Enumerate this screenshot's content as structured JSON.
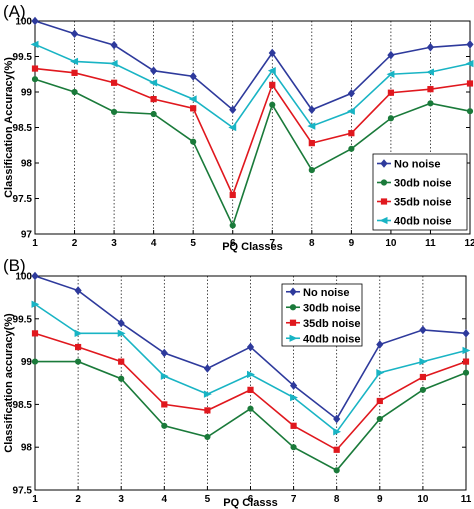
{
  "chart_data": [
    {
      "type": "line",
      "panel_label": "(A)",
      "xlabel": "PQ Classes",
      "ylabel": "Classification Accuracy(%)",
      "x": [
        1,
        2,
        3,
        4,
        5,
        6,
        7,
        8,
        9,
        10,
        11,
        12
      ],
      "x_tick_labels": [
        "1",
        "2",
        "3",
        "4",
        "5",
        "6",
        "7",
        "8",
        "9",
        "10",
        "11",
        "12"
      ],
      "xlim": [
        1,
        12
      ],
      "ylim": [
        97,
        100
      ],
      "y_ticks": [
        97,
        97.5,
        98,
        98.5,
        99,
        99.5,
        100
      ],
      "y_tick_labels": [
        "97",
        "97.5",
        "98",
        "98.5",
        "99",
        "99.5",
        "100"
      ],
      "grid": "vertical dotted lines at each class",
      "legend_position": "lower-right",
      "series": [
        {
          "name": "No noise",
          "color": "#2e3a9c",
          "marker": "diamond",
          "values": [
            100,
            99.82,
            99.66,
            99.3,
            99.22,
            98.75,
            99.55,
            98.75,
            98.98,
            99.52,
            99.63,
            99.67
          ]
        },
        {
          "name": "30db noise",
          "color": "#1a7a3a",
          "marker": "circle",
          "values": [
            99.18,
            99.0,
            98.72,
            98.69,
            98.3,
            97.12,
            98.82,
            97.9,
            98.2,
            98.63,
            98.84,
            98.73
          ]
        },
        {
          "name": "35db noise",
          "color": "#e0181e",
          "marker": "square",
          "values": [
            99.33,
            99.27,
            99.13,
            98.9,
            98.77,
            97.55,
            99.1,
            98.28,
            98.42,
            98.99,
            99.04,
            99.12
          ]
        },
        {
          "name": "40db noise",
          "color": "#19b4c4",
          "marker": "triangle-left",
          "values": [
            99.67,
            99.43,
            99.4,
            99.13,
            98.9,
            98.5,
            99.3,
            98.52,
            98.73,
            99.25,
            99.28,
            99.4
          ]
        }
      ]
    },
    {
      "type": "line",
      "panel_label": "(B)",
      "xlabel": "PQ Classs",
      "ylabel": "Classification accuracy(%)",
      "x": [
        1,
        2,
        3,
        4,
        5,
        6,
        7,
        8,
        9,
        10,
        11
      ],
      "x_tick_labels": [
        "1",
        "2",
        "3",
        "4",
        "5",
        "6",
        "7",
        "8",
        "9",
        "10",
        "11"
      ],
      "xlim": [
        1,
        11
      ],
      "ylim": [
        97.5,
        100
      ],
      "y_ticks": [
        97.5,
        98,
        98.5,
        99,
        99.5,
        100
      ],
      "y_tick_labels": [
        "97.5",
        "98",
        "98.5",
        "99",
        "99.5",
        "100"
      ],
      "grid": "vertical dotted lines at each class",
      "legend_position": "top-right",
      "series": [
        {
          "name": "No noise",
          "color": "#2e3a9c",
          "marker": "diamond",
          "values": [
            100,
            99.83,
            99.45,
            99.1,
            98.92,
            99.17,
            98.72,
            98.33,
            99.2,
            99.37,
            99.33
          ]
        },
        {
          "name": "30db noise",
          "color": "#1a7a3a",
          "marker": "circle",
          "values": [
            99.0,
            99.0,
            98.8,
            98.25,
            98.12,
            98.45,
            98.0,
            97.73,
            98.33,
            98.67,
            98.87
          ]
        },
        {
          "name": "35db noise",
          "color": "#e0181e",
          "marker": "square",
          "values": [
            99.33,
            99.17,
            99.0,
            98.5,
            98.43,
            98.67,
            98.25,
            97.97,
            98.54,
            98.82,
            99.0
          ]
        },
        {
          "name": "40db noise",
          "color": "#19b4c4",
          "marker": "triangle-right",
          "values": [
            99.67,
            99.33,
            99.33,
            98.83,
            98.62,
            98.85,
            98.58,
            98.18,
            98.87,
            99.0,
            99.13
          ]
        }
      ]
    }
  ]
}
